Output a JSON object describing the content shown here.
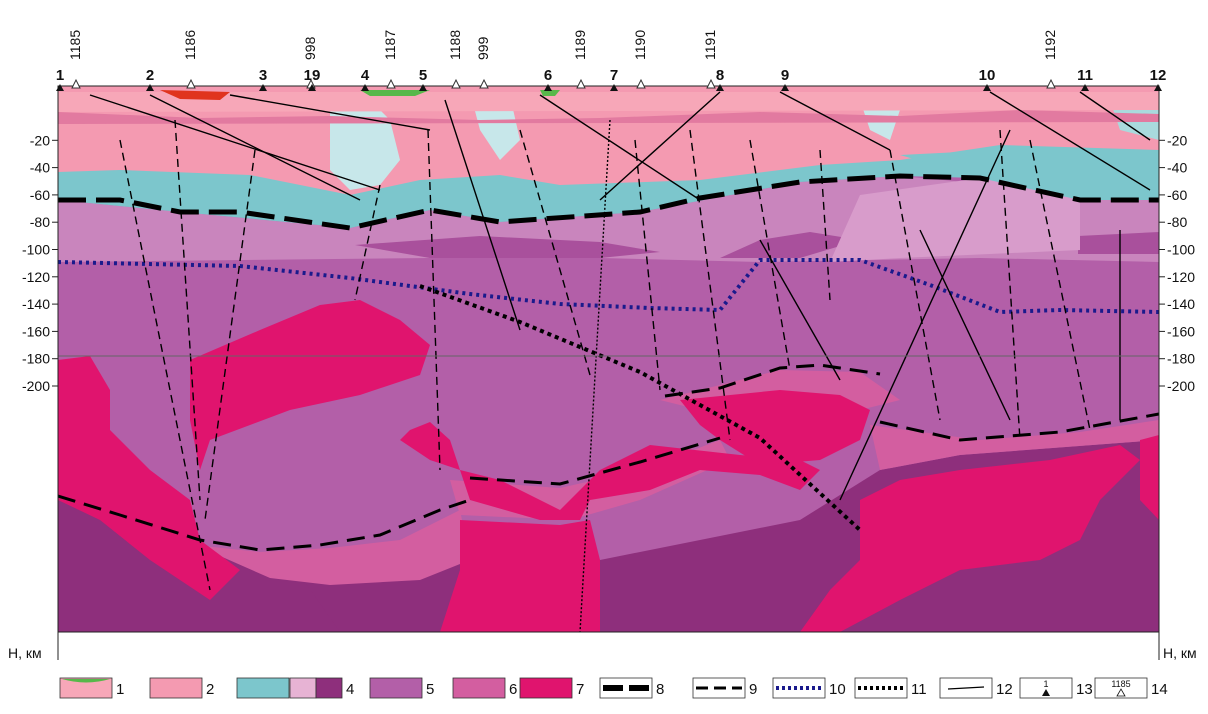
{
  "figure": {
    "y_axis": {
      "unit_label": "H, км",
      "ticks": [
        "-20",
        "-40",
        "-60",
        "-80",
        "-100",
        "-120",
        "-140",
        "-160",
        "-180",
        "-200"
      ]
    },
    "sites": [
      "1185",
      "1186",
      "998",
      "1187",
      "1188",
      "999",
      "1189",
      "1190",
      "1191",
      "1192"
    ],
    "points": [
      "1",
      "2",
      "3",
      "19",
      "4",
      "5",
      "6",
      "7",
      "8",
      "9",
      "10",
      "11",
      "12"
    ],
    "legend": [
      {
        "num": "1",
        "kind": "swatch-green-pink",
        "colors": [
          "#f7a7b8",
          "#57b84a"
        ]
      },
      {
        "num": "2",
        "kind": "swatch",
        "colors": [
          "#f49ab1"
        ]
      },
      {
        "num": "3",
        "kind": "swatch",
        "colors": [
          "#7cc6cc"
        ]
      },
      {
        "num": "4",
        "kind": "swatch-split",
        "colors": [
          "#e7b3d4",
          "#8e2f7c"
        ]
      },
      {
        "num": "5",
        "kind": "swatch",
        "colors": [
          "#b35fa8"
        ]
      },
      {
        "num": "6",
        "kind": "swatch",
        "colors": [
          "#d35ea0"
        ]
      },
      {
        "num": "7",
        "kind": "swatch",
        "colors": [
          "#e0146e"
        ]
      },
      {
        "num": "8",
        "kind": "line-thick-dash"
      },
      {
        "num": "9",
        "kind": "line-dash"
      },
      {
        "num": "10",
        "kind": "line-blue-dot"
      },
      {
        "num": "11",
        "kind": "line-black-dot"
      },
      {
        "num": "12",
        "kind": "line-thin"
      },
      {
        "num": "13",
        "kind": "marker-triangle",
        "mini": "1"
      },
      {
        "num": "14",
        "kind": "marker-hollow",
        "mini": "1185"
      }
    ],
    "colors": {
      "layer1": "#f7a7b8",
      "green": "#57b84a",
      "red": "#e0341e",
      "layer2": "#f49ab1",
      "layer3": "#7cc6cc",
      "layer4_light": "#e7b3d4",
      "layer4_dark": "#8e2f7c",
      "layer5": "#b35fa8",
      "layer6": "#d35ea0",
      "layer7": "#e0146e",
      "blue_dot": "#1a1a8c"
    }
  }
}
